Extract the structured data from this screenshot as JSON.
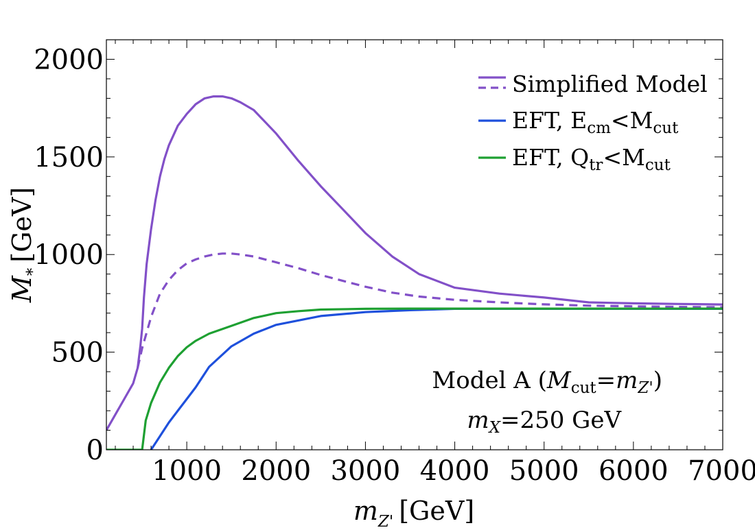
{
  "chart_data": {
    "type": "line",
    "title": "",
    "xlabel": {
      "main": "m",
      "sub": "Z'",
      "unit": "[GeV]"
    },
    "ylabel": {
      "main": "M",
      "sub": "*",
      "unit": "[GeV]"
    },
    "xlim": [
      100,
      7000
    ],
    "ylim": [
      0,
      2100
    ],
    "xticks": [
      1000,
      2000,
      3000,
      4000,
      5000,
      6000,
      7000
    ],
    "yticks": [
      0,
      500,
      1000,
      1500,
      2000
    ],
    "grid": false,
    "legend_position": "top-right",
    "legend": [
      {
        "label": "Simplified Model",
        "color": "#8250c8",
        "style": "solid+dashed"
      },
      {
        "label_main": "EFT, E",
        "label_sub": "cm",
        "label_rest": "<M",
        "label_sub2": "cut",
        "color": "#1e50dc",
        "style": "solid"
      },
      {
        "label_main": "EFT, Q",
        "label_sub": "tr",
        "label_rest": "<M",
        "label_sub2": "cut",
        "color": "#1ea032",
        "style": "solid"
      }
    ],
    "annotations": {
      "line1_a": "Model A (",
      "line1_m": "M",
      "line1_sub": "cut",
      "line1_eq": "=",
      "line1_m2": "m",
      "line1_sub2": "Z'",
      "line1_close": ")",
      "line2_m": "m",
      "line2_sub": "X",
      "line2_rest": "=250 GeV"
    },
    "series": [
      {
        "name": "Simplified Model",
        "color": "#8250c8",
        "dash": false,
        "x": [
          100,
          200,
          300,
          400,
          450,
          480,
          500,
          520,
          550,
          600,
          650,
          700,
          750,
          800,
          900,
          1000,
          1100,
          1200,
          1300,
          1400,
          1500,
          1600,
          1750,
          2000,
          2250,
          2500,
          2750,
          3000,
          3300,
          3600,
          4000,
          4500,
          5000,
          5500,
          6000,
          6500,
          7000
        ],
        "y": [
          100,
          180,
          260,
          340,
          420,
          530,
          620,
          780,
          950,
          1130,
          1280,
          1400,
          1490,
          1560,
          1660,
          1720,
          1770,
          1800,
          1810,
          1810,
          1800,
          1780,
          1740,
          1620,
          1480,
          1350,
          1230,
          1110,
          990,
          900,
          830,
          800,
          780,
          755,
          750,
          747,
          744
        ]
      },
      {
        "name": "Simplified Model",
        "color": "#8250c8",
        "dash": true,
        "x": [
          450,
          500,
          550,
          600,
          650,
          700,
          800,
          900,
          1000,
          1100,
          1200,
          1300,
          1400,
          1500,
          1600,
          1750,
          2000,
          2250,
          2500,
          2750,
          3000,
          3300,
          3600,
          4000,
          4500,
          5000,
          5500,
          6000,
          6500,
          7000
        ],
        "y": [
          420,
          520,
          600,
          680,
          740,
          800,
          870,
          920,
          955,
          975,
          990,
          1000,
          1005,
          1005,
          1000,
          990,
          960,
          930,
          895,
          865,
          835,
          805,
          785,
          768,
          755,
          745,
          738,
          735,
          732,
          730
        ]
      },
      {
        "name": "EFT, Ecm<Mcut",
        "color": "#1e50dc",
        "dash": false,
        "x": [
          600,
          700,
          800,
          900,
          1000,
          1100,
          1250,
          1500,
          1750,
          2000,
          2500,
          3000,
          3500,
          4000,
          5000,
          6000,
          7000
        ],
        "y": [
          0,
          70,
          140,
          200,
          260,
          320,
          425,
          530,
          595,
          640,
          685,
          705,
          715,
          722,
          722,
          722,
          722
        ]
      },
      {
        "name": "EFT, Qtr<Mcut",
        "color": "#1ea032",
        "dash": false,
        "x": [
          100,
          300,
          500,
          540,
          600,
          700,
          800,
          900,
          1000,
          1100,
          1250,
          1500,
          1750,
          2000,
          2250,
          2500,
          3000,
          3500,
          4000,
          5000,
          6000,
          7000
        ],
        "y": [
          0,
          0,
          0,
          150,
          240,
          345,
          420,
          480,
          525,
          558,
          595,
          635,
          675,
          700,
          710,
          718,
          722,
          723,
          723,
          723,
          723,
          723
        ]
      }
    ]
  }
}
